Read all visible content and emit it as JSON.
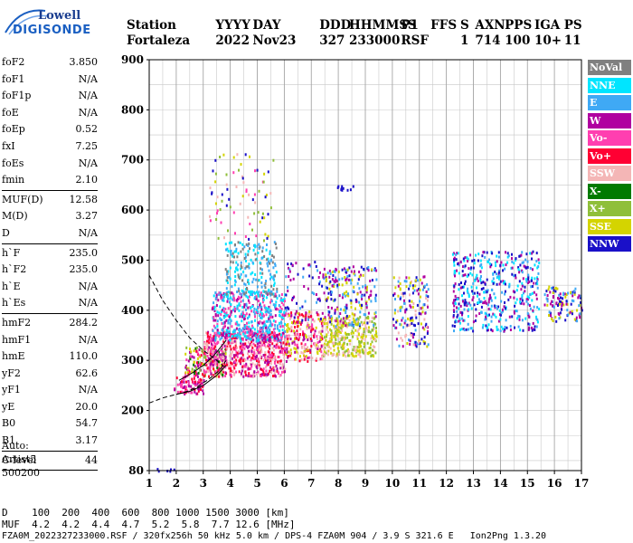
{
  "logo": {
    "line1": "Lowell",
    "line2": "DIGISONDE"
  },
  "header": {
    "labels": [
      "Station",
      "YYYY",
      "DAY",
      "DDD",
      "HHMMSS",
      "P1",
      "FFS",
      "S",
      "AXN",
      "PPS",
      "IGA",
      "PS"
    ],
    "values": [
      "Fortaleza",
      "2022",
      "Nov23",
      "327",
      "233000",
      "RSF",
      "",
      "1",
      "714",
      "100",
      "10+",
      "11"
    ]
  },
  "params": [
    {
      "name": "foF2",
      "value": "3.850"
    },
    {
      "name": "foF1",
      "value": "N/A"
    },
    {
      "name": "foF1p",
      "value": "N/A"
    },
    {
      "name": "foE",
      "value": "N/A"
    },
    {
      "name": "foEp",
      "value": "0.52"
    },
    {
      "name": "fxI",
      "value": "7.25"
    },
    {
      "name": "foEs",
      "value": "N/A"
    },
    {
      "name": "fmin",
      "value": "2.10"
    },
    {
      "sep": true
    },
    {
      "name": "MUF(D)",
      "value": "12.58"
    },
    {
      "name": "M(D)",
      "value": "3.27"
    },
    {
      "name": "D",
      "value": "N/A"
    },
    {
      "sep": true
    },
    {
      "name": "h`F",
      "value": "235.0"
    },
    {
      "name": "h`F2",
      "value": "235.0"
    },
    {
      "name": "h`E",
      "value": "N/A"
    },
    {
      "name": "h`Es",
      "value": "N/A"
    },
    {
      "sep": true
    },
    {
      "name": "hmF2",
      "value": "284.2"
    },
    {
      "name": "hmF1",
      "value": "N/A"
    },
    {
      "name": "hmE",
      "value": "110.0"
    },
    {
      "name": "yF2",
      "value": "62.6"
    },
    {
      "name": "yF1",
      "value": "N/A"
    },
    {
      "name": "yE",
      "value": "20.0"
    },
    {
      "name": "B0",
      "value": "54.7"
    },
    {
      "name": "B1",
      "value": "3.17"
    },
    {
      "sep": true
    },
    {
      "name": "C-level",
      "value": "44"
    },
    {
      "sep": true
    }
  ],
  "auto": {
    "line1": "Auto:",
    "line2": "Artist5",
    "line3": "500200"
  },
  "legend": [
    {
      "label": "NoVal",
      "color": "#808080"
    },
    {
      "label": "NNE",
      "color": "#00e5ff"
    },
    {
      "label": "E",
      "color": "#3fa9f5"
    },
    {
      "label": "W",
      "color": "#b000a0"
    },
    {
      "label": "Vo-",
      "color": "#ff3fb0"
    },
    {
      "label": "Vo+",
      "color": "#ff0033"
    },
    {
      "label": "SSW",
      "color": "#f4b6b6"
    },
    {
      "label": "X-",
      "color": "#007a00"
    },
    {
      "label": "X+",
      "color": "#8fbf3a"
    },
    {
      "label": "SSE",
      "color": "#d4d400"
    },
    {
      "label": "NNW",
      "color": "#1a10c8"
    }
  ],
  "muf_table": {
    "d_label": "D",
    "d_values": [
      "100",
      "200",
      "400",
      "600",
      "800",
      "1000",
      "1500",
      "3000"
    ],
    "d_unit": "[km]",
    "muf_label": "MUF",
    "muf_values": [
      "4.2",
      "4.2",
      "4.4",
      "4.7",
      "5.2",
      "5.8",
      "7.7",
      "12.6"
    ],
    "muf_unit": "[MHz]"
  },
  "footer": "FZA0M_2022327233000.RSF / 320fx256h 50 kHz 5.0 km / DPS-4 FZA0M 904 / 3.9 S 321.6 E   Ion2Png 1.3.20",
  "chart_data": {
    "type": "scatter",
    "xlim": [
      1,
      17
    ],
    "ylim": [
      80,
      900
    ],
    "x_ticks": [
      1,
      2,
      3,
      4,
      5,
      6,
      7,
      8,
      9,
      10,
      11,
      12,
      13,
      14,
      15,
      16,
      17
    ],
    "y_ticks": [
      80,
      200,
      300,
      400,
      500,
      600,
      700,
      800,
      900
    ],
    "grid": true,
    "clusters": [
      {
        "xmin": 1.15,
        "xmax": 1.9,
        "ymin": 80,
        "ymax": 86,
        "count": 6,
        "colors": [
          "#1a10c8"
        ]
      },
      {
        "xmin": 1.9,
        "xmax": 3.0,
        "ymin": 235,
        "ymax": 270,
        "count": 80,
        "colors": [
          "#ff0033",
          "#b000a0",
          "#ff3fb0"
        ]
      },
      {
        "xmin": 2.3,
        "xmax": 3.8,
        "ymin": 270,
        "ymax": 330,
        "count": 160,
        "colors": [
          "#ff0033",
          "#d4d400",
          "#b000a0",
          "#8fbf3a",
          "#007a00",
          "#ff3fb0"
        ]
      },
      {
        "xmin": 3.0,
        "xmax": 6.0,
        "ymin": 270,
        "ymax": 360,
        "count": 650,
        "colors": [
          "#ff0033",
          "#ff3fb0",
          "#b000a0",
          "#f4b6b6"
        ]
      },
      {
        "xmin": 3.3,
        "xmax": 6.0,
        "ymin": 340,
        "ymax": 440,
        "count": 520,
        "colors": [
          "#3fa9f5",
          "#b000a0",
          "#ff3fb0",
          "#00e5ff"
        ]
      },
      {
        "xmin": 3.8,
        "xmax": 5.7,
        "ymin": 430,
        "ymax": 540,
        "count": 200,
        "colors": [
          "#3fa9f5",
          "#00e5ff",
          "#808080"
        ]
      },
      {
        "xmin": 3.2,
        "xmax": 5.6,
        "ymin": 540,
        "ymax": 720,
        "count": 80,
        "colors": [
          "#d4d400",
          "#f4b6b6",
          "#ff3fb0",
          "#8fbf3a",
          "#1a10c8"
        ]
      },
      {
        "xmin": 6.0,
        "xmax": 7.4,
        "ymin": 300,
        "ymax": 400,
        "count": 240,
        "colors": [
          "#d4d400",
          "#f4b6b6",
          "#ff3fb0",
          "#b000a0",
          "#ff0033"
        ]
      },
      {
        "xmin": 6.0,
        "xmax": 7.4,
        "ymin": 380,
        "ymax": 500,
        "count": 60,
        "colors": [
          "#1a10c8",
          "#3fa9f5",
          "#b000a0"
        ]
      },
      {
        "xmin": 7.4,
        "xmax": 9.4,
        "ymin": 310,
        "ymax": 390,
        "count": 320,
        "colors": [
          "#d4d400",
          "#f4b6b6",
          "#8fbf3a"
        ]
      },
      {
        "xmin": 7.4,
        "xmax": 9.4,
        "ymin": 370,
        "ymax": 490,
        "count": 220,
        "colors": [
          "#1a10c8",
          "#3fa9f5",
          "#b000a0",
          "#d4d400"
        ]
      },
      {
        "xmin": 7.9,
        "xmax": 8.6,
        "ymin": 640,
        "ymax": 652,
        "count": 10,
        "colors": [
          "#1a10c8"
        ]
      },
      {
        "xmin": 10.0,
        "xmax": 11.3,
        "ymin": 330,
        "ymax": 470,
        "count": 170,
        "colors": [
          "#f4b6b6",
          "#d4d400",
          "#1a10c8",
          "#b000a0",
          "#3fa9f5"
        ]
      },
      {
        "xmin": 12.2,
        "xmax": 15.4,
        "ymin": 360,
        "ymax": 520,
        "count": 480,
        "colors": [
          "#b000a0",
          "#3fa9f5",
          "#1a10c8",
          "#00e5ff"
        ]
      },
      {
        "xmin": 15.6,
        "xmax": 17.0,
        "ymin": 380,
        "ymax": 450,
        "count": 110,
        "colors": [
          "#b000a0",
          "#3fa9f5",
          "#1a10c8",
          "#d4d400"
        ]
      }
    ],
    "profile_curves": [
      {
        "x": [
          1.0,
          1.5,
          2.0,
          2.5,
          3.0,
          3.5,
          3.85
        ],
        "y": [
          470,
          420,
          380,
          345,
          320,
          300,
          284
        ],
        "style": "dashed"
      },
      {
        "x": [
          1.0,
          1.5,
          2.0,
          2.4,
          2.8,
          3.2,
          3.6,
          3.85
        ],
        "y": [
          215,
          225,
          232,
          238,
          248,
          262,
          280,
          300
        ],
        "style": "dashed"
      },
      {
        "x": [
          2.0,
          2.5,
          3.0,
          3.5,
          3.85
        ],
        "y": [
          232,
          238,
          250,
          270,
          290
        ],
        "style": "solid"
      },
      {
        "x": [
          2.1,
          2.6,
          3.0,
          3.4,
          3.85
        ],
        "y": [
          260,
          275,
          290,
          310,
          340
        ],
        "style": "solid"
      }
    ]
  }
}
